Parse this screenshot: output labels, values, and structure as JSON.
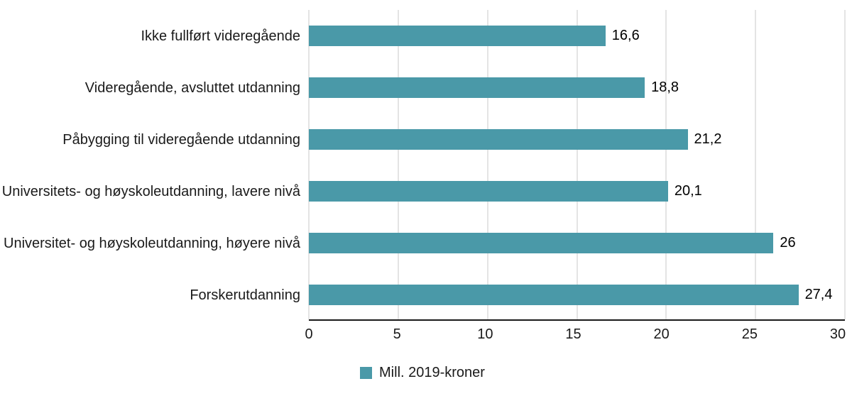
{
  "chart_data": {
    "type": "bar",
    "orientation": "horizontal",
    "categories": [
      "Ikke fullført videregående",
      "Videregående, avsluttet utdanning",
      "Påbygging til videregående utdanning",
      "Universitets- og høyskoleutdanning, lavere nivå",
      "Universitet- og høyskoleutdanning, høyere nivå",
      "Forskerutdanning"
    ],
    "values": [
      16.6,
      18.8,
      21.2,
      20.1,
      26,
      27.4
    ],
    "value_labels": [
      "16,6",
      "18,8",
      "21,2",
      "20,1",
      "26",
      "27,4"
    ],
    "xlim": [
      0,
      30
    ],
    "x_ticks": [
      0,
      5,
      10,
      15,
      20,
      25,
      30
    ],
    "bar_color": "#4a99a8",
    "grid": true,
    "legend": [
      {
        "label": "Mill. 2019-kroner",
        "color": "#4a99a8"
      }
    ],
    "legend_position": "bottom-center",
    "title": "",
    "xlabel": "",
    "ylabel": ""
  }
}
